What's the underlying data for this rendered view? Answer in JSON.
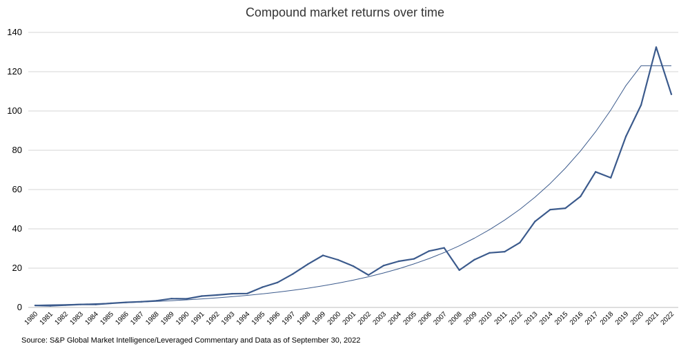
{
  "chart_data": {
    "type": "line",
    "title": "Compound market returns over time",
    "source": "Source: S&P Global Market Intelligence/Leveraged Commentary and Data as of September 30, 2022",
    "xlabel": "",
    "ylabel": "",
    "ylim": [
      0,
      140
    ],
    "yticks": [
      0,
      20,
      40,
      60,
      80,
      100,
      120,
      140
    ],
    "grid": "horizontal",
    "legend": "none",
    "categories": [
      "1980",
      "1981",
      "1982",
      "1983",
      "1984",
      "1985",
      "1986",
      "1987",
      "1988",
      "1989",
      "1990",
      "1991",
      "1992",
      "1993",
      "1994",
      "1995",
      "1996",
      "1997",
      "1998",
      "1999",
      "2000",
      "2001",
      "2002",
      "2003",
      "2004",
      "2005",
      "2006",
      "2007",
      "2008",
      "2009",
      "2010",
      "2011",
      "2012",
      "2013",
      "2014",
      "2015",
      "2016",
      "2017",
      "2018",
      "2019",
      "2020",
      "2021",
      "2022"
    ],
    "series": [
      {
        "kind": "actual",
        "color": "#3b5a8c",
        "values": [
          1.0,
          0.8,
          1.2,
          1.5,
          1.5,
          2.1,
          2.6,
          2.9,
          3.4,
          4.5,
          4.4,
          5.8,
          6.3,
          7.0,
          7.1,
          10.3,
          12.7,
          17.0,
          22.0,
          26.5,
          24.2,
          21.0,
          16.5,
          21.3,
          23.5,
          24.7,
          28.7,
          30.3,
          19.0,
          24.3,
          27.8,
          28.4,
          33.0,
          43.8,
          49.8,
          50.5,
          56.5,
          69.0,
          66.0,
          87.0,
          103.0,
          132.5,
          108.5
        ]
      },
      {
        "kind": "trend",
        "color": "#3b5a8c",
        "values": [
          1.2,
          1.36,
          1.52,
          1.71,
          1.92,
          2.16,
          2.43,
          2.73,
          3.06,
          3.44,
          3.86,
          4.34,
          4.88,
          5.48,
          6.15,
          6.91,
          7.76,
          8.72,
          9.8,
          11.01,
          12.37,
          13.9,
          15.61,
          17.54,
          19.7,
          22.13,
          24.86,
          27.93,
          31.38,
          35.26,
          39.6,
          44.49,
          49.98,
          56.15,
          63.08,
          70.87,
          79.62,
          89.44,
          100.5,
          112.9,
          123.0,
          123.0,
          123.0
        ]
      }
    ]
  }
}
